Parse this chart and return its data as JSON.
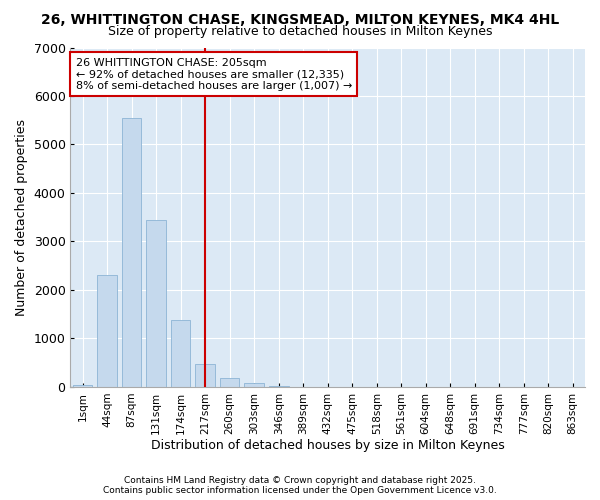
{
  "title": "26, WHITTINGTON CHASE, KINGSMEAD, MILTON KEYNES, MK4 4HL",
  "subtitle": "Size of property relative to detached houses in Milton Keynes",
  "xlabel": "Distribution of detached houses by size in Milton Keynes",
  "ylabel": "Number of detached properties",
  "figure_background_color": "#ffffff",
  "plot_background_color": "#dce9f5",
  "bar_color": "#c5d9ed",
  "bar_edge_color": "#8cb4d5",
  "marker_line_color": "#cc0000",
  "annotation_box_edge_color": "#cc0000",
  "annotation_box_face_color": "#ffffff",
  "grid_color": "#ffffff",
  "categories": [
    "1sqm",
    "44sqm",
    "87sqm",
    "131sqm",
    "174sqm",
    "217sqm",
    "260sqm",
    "303sqm",
    "346sqm",
    "389sqm",
    "432sqm",
    "475sqm",
    "518sqm",
    "561sqm",
    "604sqm",
    "648sqm",
    "691sqm",
    "734sqm",
    "777sqm",
    "820sqm",
    "863sqm"
  ],
  "values": [
    50,
    2300,
    5550,
    3450,
    1380,
    470,
    175,
    75,
    20,
    0,
    0,
    0,
    0,
    0,
    0,
    0,
    0,
    0,
    0,
    0,
    0
  ],
  "marker_bin_index": 5,
  "ylim": [
    0,
    7000
  ],
  "yticks": [
    0,
    1000,
    2000,
    3000,
    4000,
    5000,
    6000,
    7000
  ],
  "annotation_text": "26 WHITTINGTON CHASE: 205sqm\n← 92% of detached houses are smaller (12,335)\n8% of semi-detached houses are larger (1,007) →",
  "footnote1": "Contains HM Land Registry data © Crown copyright and database right 2025.",
  "footnote2": "Contains public sector information licensed under the Open Government Licence v3.0."
}
